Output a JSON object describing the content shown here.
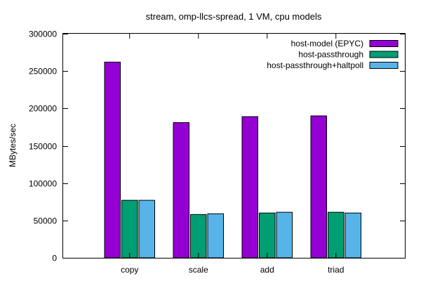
{
  "chart_data": {
    "type": "bar",
    "title": "stream, omp-llcs-spread, 1 VM, cpu models",
    "xlabel": "",
    "ylabel": "MBytes/sec",
    "ylim": [
      0,
      300000
    ],
    "yticks": [
      0,
      50000,
      100000,
      150000,
      200000,
      250000,
      300000
    ],
    "ytick_labels": [
      "0",
      "50000",
      "100000",
      "150000",
      "200000",
      "250000",
      "300000"
    ],
    "categories": [
      "copy",
      "scale",
      "add",
      "triad"
    ],
    "grid": false,
    "legend_position": "top-right",
    "series": [
      {
        "name": "host-model (EPYC)",
        "color": "#9400d3",
        "values": [
          262000,
          181000,
          189000,
          190000
        ]
      },
      {
        "name": "host-passthrough",
        "color": "#009e73",
        "values": [
          77000,
          58000,
          60000,
          61000
        ]
      },
      {
        "name": "host-passthrough+haltpoll",
        "color": "#56b4e9",
        "values": [
          77000,
          59000,
          61000,
          60000
        ]
      }
    ]
  }
}
